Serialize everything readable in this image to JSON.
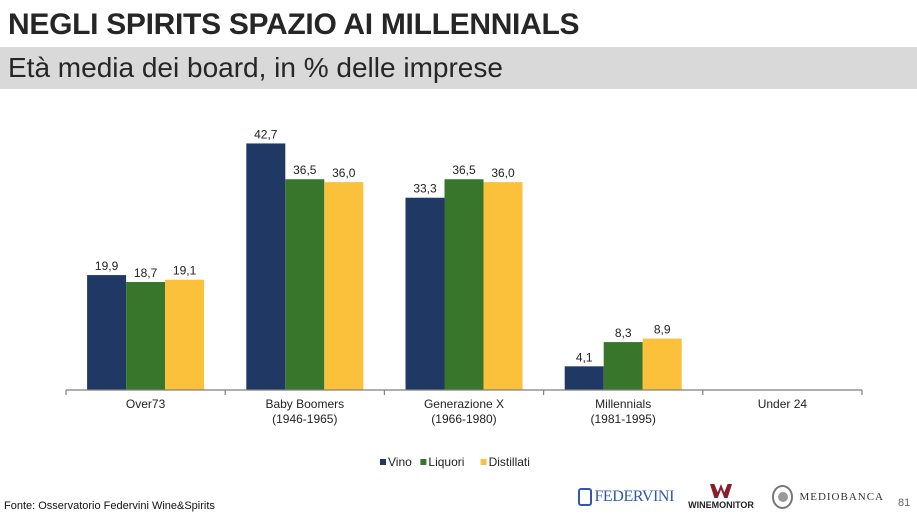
{
  "header": {
    "title": "NEGLI SPIRITS SPAZIO AI MILLENNIALS",
    "subtitle": "Età media dei board, in % delle imprese"
  },
  "chart_data": {
    "type": "bar",
    "categories": [
      [
        "Over73"
      ],
      [
        "Baby Boomers",
        "(1946-1965)"
      ],
      [
        "Generazione X",
        "(1966-1980)"
      ],
      [
        "Millennials",
        "(1981-1995)"
      ],
      [
        "Under 24"
      ]
    ],
    "series": [
      {
        "name": "Vino",
        "color": "#1f3864",
        "values": [
          19.9,
          42.7,
          33.3,
          4.1,
          0
        ],
        "labels": [
          "19,9",
          "42,7",
          "33,3",
          "4,1",
          ""
        ]
      },
      {
        "name": "Liquori",
        "color": "#38762c",
        "values": [
          18.7,
          36.5,
          36.5,
          8.3,
          0
        ],
        "labels": [
          "18,7",
          "36,5",
          "36,5",
          "8,3",
          ""
        ]
      },
      {
        "name": "Distillati",
        "color": "#fcc13a",
        "values": [
          19.1,
          36.0,
          36.0,
          8.9,
          0
        ],
        "labels": [
          "19,1",
          "36,0",
          "36,0",
          "8,9",
          ""
        ]
      }
    ],
    "ylim": [
      0,
      45
    ],
    "legend_position": "bottom-center"
  },
  "footer": {
    "source": "Fonte: Osservatorio Federvini Wine&Spirits",
    "page_number": "81",
    "logos": {
      "federvini": "FEDERVINI",
      "winemonitor": "WINEMONITOR",
      "mediobanca": "MEDIOBANCA"
    }
  }
}
